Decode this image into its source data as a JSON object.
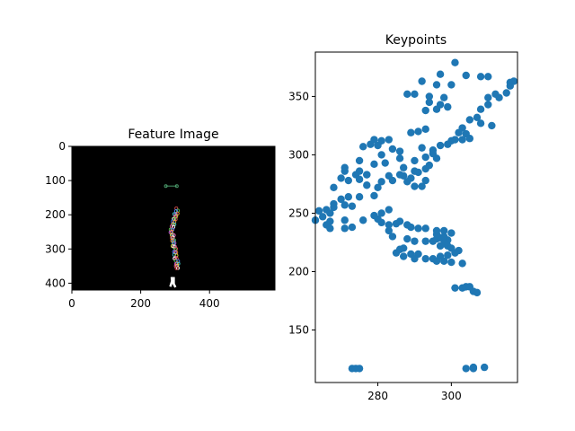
{
  "chart_data": [
    {
      "type": "image",
      "title": "Feature Image",
      "xlim": [
        0,
        590
      ],
      "ylim": [
        420,
        0
      ],
      "xticks": [
        "0",
        "200",
        "400"
      ],
      "xtick_values": [
        0,
        200,
        400
      ],
      "yticks": [
        "0",
        "100",
        "200",
        "300",
        "400"
      ],
      "ytick_values": [
        0,
        100,
        200,
        300,
        400
      ],
      "background": "#000000",
      "segment": {
        "x1": 273,
        "y1": 116,
        "x2": 305,
        "y2": 116,
        "color": "#4a9a6a"
      },
      "path": [
        [
          308,
          183
        ],
        [
          300,
          200
        ],
        [
          299,
          215
        ],
        [
          293,
          230
        ],
        [
          290,
          245
        ],
        [
          292,
          262
        ],
        [
          295,
          278
        ],
        [
          298,
          295
        ],
        [
          300,
          312
        ],
        [
          303,
          330
        ],
        [
          306,
          345
        ],
        [
          305,
          358
        ]
      ],
      "skeleton": [
        [
          290,
          382
        ],
        [
          291,
          394
        ],
        [
          286,
          410
        ],
        [
          296,
          402
        ],
        [
          301,
          412
        ],
        [
          296,
          382
        ]
      ],
      "feature_colors": [
        "#e05050",
        "#50c050",
        "#5080ff",
        "#ff9f30",
        "#c060e0",
        "#40d0d0",
        "#e0e040",
        "#ff60b0",
        "#ffffff"
      ]
    },
    {
      "type": "scatter",
      "title": "Keypoints",
      "xlim": [
        263,
        318
      ],
      "ylim": [
        105,
        388
      ],
      "xticks": [
        "280",
        "300"
      ],
      "xtick_values": [
        280,
        300
      ],
      "yticks": [
        "150",
        "200",
        "250",
        "300",
        "350"
      ],
      "ytick_values": [
        150,
        200,
        250,
        300,
        350
      ],
      "color": "#1f77b4",
      "points": [
        [
          301,
          379
        ],
        [
          297,
          369
        ],
        [
          304,
          368
        ],
        [
          308,
          367
        ],
        [
          310,
          367
        ],
        [
          292,
          363
        ],
        [
          296,
          360
        ],
        [
          300,
          360
        ],
        [
          316,
          362
        ],
        [
          317,
          363
        ],
        [
          316,
          359
        ],
        [
          288,
          352
        ],
        [
          290,
          352
        ],
        [
          294,
          350
        ],
        [
          298,
          349
        ],
        [
          310,
          349
        ],
        [
          313,
          349
        ],
        [
          312,
          352
        ],
        [
          315,
          353
        ],
        [
          294,
          345
        ],
        [
          297,
          343
        ],
        [
          299,
          341
        ],
        [
          310,
          343
        ],
        [
          293,
          338
        ],
        [
          296,
          339
        ],
        [
          308,
          339
        ],
        [
          307,
          332
        ],
        [
          305,
          330
        ],
        [
          311,
          325
        ],
        [
          308,
          327
        ],
        [
          303,
          323
        ],
        [
          302,
          319
        ],
        [
          304,
          318
        ],
        [
          305,
          314
        ],
        [
          303,
          313
        ],
        [
          300,
          312
        ],
        [
          301,
          313
        ],
        [
          289,
          319
        ],
        [
          291,
          320
        ],
        [
          293,
          322
        ],
        [
          279,
          313
        ],
        [
          281,
          312
        ],
        [
          283,
          313
        ],
        [
          276,
          307
        ],
        [
          278,
          309
        ],
        [
          280,
          308
        ],
        [
          284,
          305
        ],
        [
          286,
          303
        ],
        [
          292,
          306
        ],
        [
          297,
          308
        ],
        [
          299,
          309
        ],
        [
          295,
          304
        ],
        [
          295,
          301
        ],
        [
          293,
          298
        ],
        [
          296,
          297
        ],
        [
          294,
          291
        ],
        [
          290,
          295
        ],
        [
          286,
          297
        ],
        [
          281,
          300
        ],
        [
          282,
          293
        ],
        [
          279,
          292
        ],
        [
          275,
          295
        ],
        [
          271,
          289
        ],
        [
          271,
          286
        ],
        [
          275,
          286
        ],
        [
          274,
          283
        ],
        [
          277,
          283
        ],
        [
          283,
          282
        ],
        [
          284,
          278
        ],
        [
          287,
          282
        ],
        [
          289,
          280
        ],
        [
          291,
          285
        ],
        [
          293,
          288
        ],
        [
          290,
          286
        ],
        [
          286,
          283
        ],
        [
          288,
          277
        ],
        [
          290,
          273
        ],
        [
          292,
          273
        ],
        [
          293,
          278
        ],
        [
          287,
          289
        ],
        [
          281,
          277
        ],
        [
          277,
          274
        ],
        [
          275,
          279
        ],
        [
          277,
          283
        ],
        [
          280,
          272
        ],
        [
          272,
          278
        ],
        [
          270,
          280
        ],
        [
          268,
          272
        ],
        [
          279,
          265
        ],
        [
          275,
          264
        ],
        [
          272,
          264
        ],
        [
          270,
          262
        ],
        [
          268,
          258
        ],
        [
          271,
          257
        ],
        [
          273,
          256
        ],
        [
          268,
          255
        ],
        [
          266,
          253
        ],
        [
          264,
          252
        ],
        [
          267,
          250
        ],
        [
          265,
          247
        ],
        [
          263,
          244
        ],
        [
          267,
          243
        ],
        [
          266,
          240
        ],
        [
          267,
          237
        ],
        [
          271,
          237
        ],
        [
          273,
          238
        ],
        [
          271,
          244
        ],
        [
          276,
          244
        ],
        [
          279,
          248
        ],
        [
          280,
          245
        ],
        [
          281,
          250
        ],
        [
          283,
          253
        ],
        [
          281,
          242
        ],
        [
          283,
          240
        ],
        [
          283,
          235
        ],
        [
          285,
          241
        ],
        [
          286,
          243
        ],
        [
          288,
          240
        ],
        [
          289,
          238
        ],
        [
          291,
          237
        ],
        [
          293,
          237
        ],
        [
          284,
          230
        ],
        [
          288,
          228
        ],
        [
          290,
          226
        ],
        [
          293,
          226
        ],
        [
          295,
          226
        ],
        [
          296,
          228
        ],
        [
          297,
          229
        ],
        [
          299,
          227
        ],
        [
          298,
          230
        ],
        [
          296,
          232
        ],
        [
          296,
          235
        ],
        [
          298,
          235
        ],
        [
          300,
          233
        ],
        [
          298,
          224
        ],
        [
          297,
          222
        ],
        [
          299,
          222
        ],
        [
          300,
          220
        ],
        [
          302,
          218
        ],
        [
          301,
          216
        ],
        [
          299,
          214
        ],
        [
          297,
          213
        ],
        [
          295,
          211
        ],
        [
          293,
          211
        ],
        [
          291,
          215
        ],
        [
          289,
          215
        ],
        [
          287,
          213
        ],
        [
          285,
          216
        ],
        [
          286,
          219
        ],
        [
          287,
          220
        ],
        [
          290,
          211
        ],
        [
          296,
          209
        ],
        [
          298,
          209
        ],
        [
          300,
          208
        ],
        [
          303,
          207
        ],
        [
          301,
          186
        ],
        [
          303,
          186
        ],
        [
          304,
          187
        ],
        [
          305,
          187
        ],
        [
          306,
          183
        ],
        [
          307,
          182
        ],
        [
          273,
          117
        ],
        [
          274,
          117
        ],
        [
          275,
          117
        ],
        [
          304,
          117
        ],
        [
          306,
          118
        ],
        [
          309,
          118
        ],
        [
          306,
          117
        ]
      ]
    }
  ]
}
